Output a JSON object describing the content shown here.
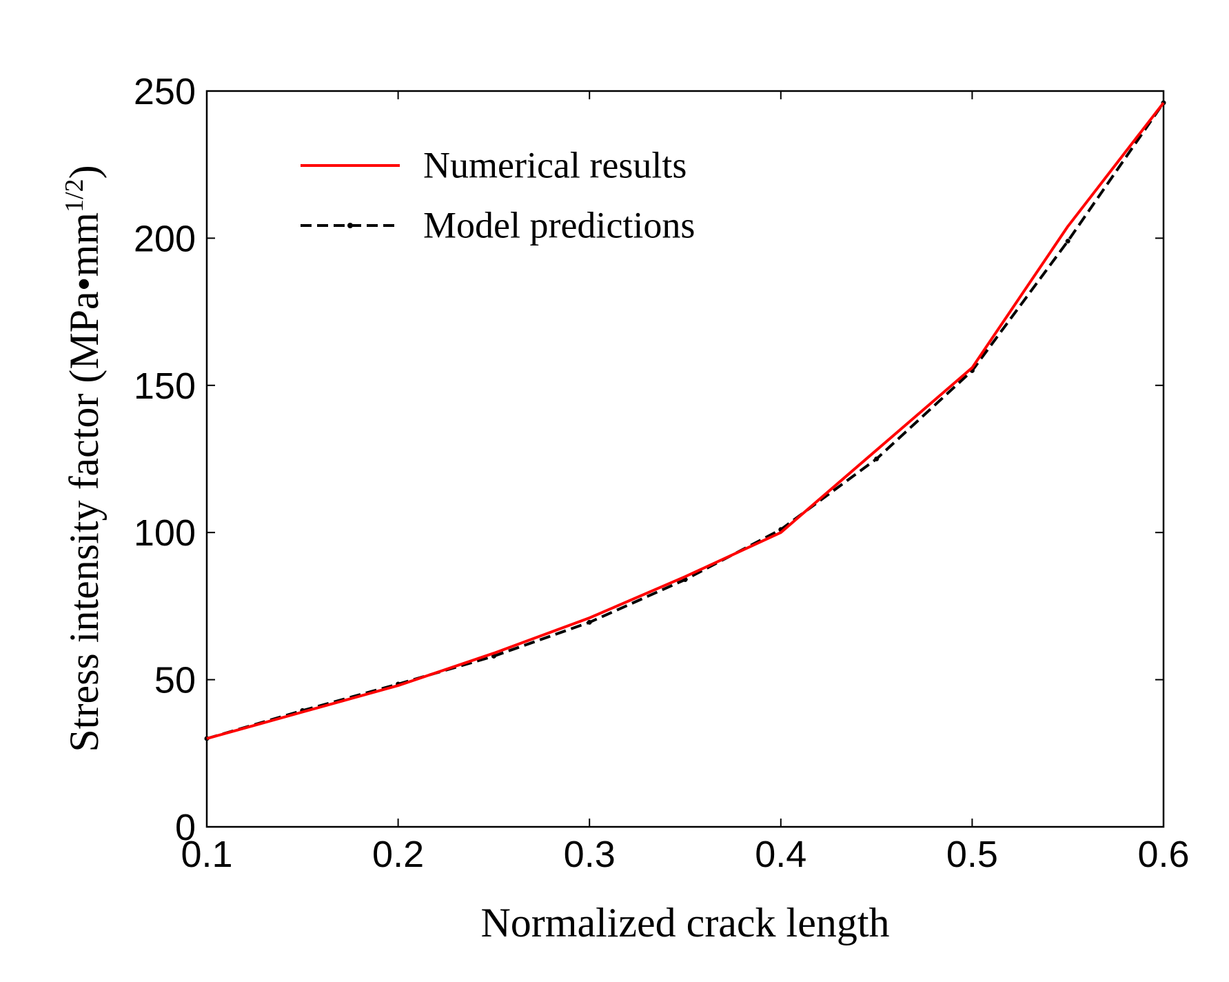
{
  "chart_data": {
    "type": "line",
    "xlabel": "Normalized crack length",
    "ylabel": "Stress intensity factor (MPa•mm",
    "ylabel_superscript": "1/2",
    "ylabel_close": ")",
    "xlim": [
      0.1,
      0.6
    ],
    "ylim": [
      0,
      250
    ],
    "xticks": [
      "0.1",
      "0.2",
      "0.3",
      "0.4",
      "0.5",
      "0.6"
    ],
    "yticks": [
      "0",
      "50",
      "100",
      "150",
      "200",
      "250"
    ],
    "grid": false,
    "legend_position": "top-left",
    "series": [
      {
        "name": "Numerical results",
        "color": "#ff0000",
        "style": "solid",
        "x": [
          0.1,
          0.15,
          0.2,
          0.25,
          0.3,
          0.35,
          0.4,
          0.45,
          0.5,
          0.55,
          0.6
        ],
        "y": [
          30,
          39,
          48,
          59,
          71,
          85,
          100,
          128,
          156,
          204,
          246
        ]
      },
      {
        "name": "Model predictions",
        "color": "#000000",
        "style": "dashed",
        "x": [
          0.1,
          0.15,
          0.2,
          0.25,
          0.3,
          0.35,
          0.4,
          0.45,
          0.5,
          0.55,
          0.6
        ],
        "y": [
          30,
          39.5,
          48.5,
          58,
          69.5,
          84,
          101,
          125,
          155,
          199,
          246
        ]
      }
    ]
  }
}
